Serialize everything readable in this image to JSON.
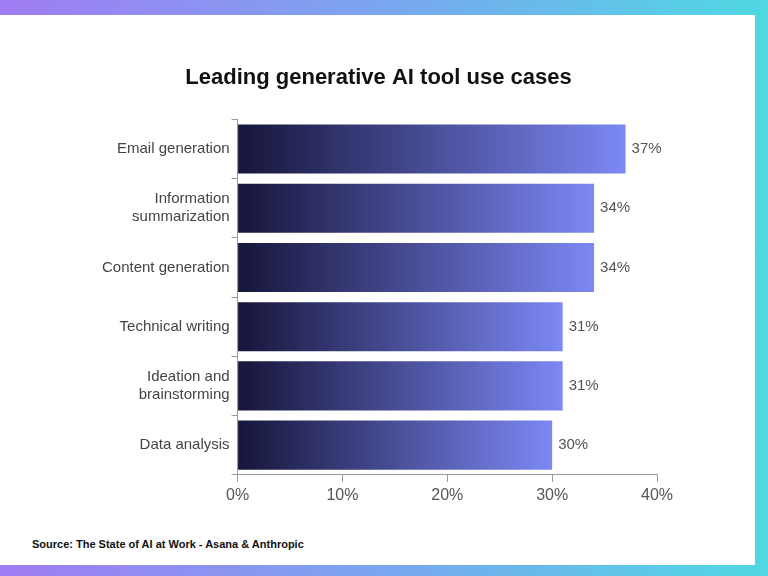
{
  "chart_data": {
    "type": "bar",
    "orientation": "horizontal",
    "title": "Leading generative AI tool use cases",
    "categories": [
      "Email generation",
      "Information summarization",
      "Content generation",
      "Technical writing",
      "Ideation and brainstorming",
      "Data analysis"
    ],
    "values": [
      37,
      34,
      34,
      31,
      31,
      30
    ],
    "value_labels": [
      "37%",
      "34%",
      "34%",
      "31%",
      "31%",
      "30%"
    ],
    "data_labels": true,
    "color": "#7c88f4",
    "xlim": [
      0,
      40
    ],
    "xticks": [
      {
        "value": 0,
        "label": "0%"
      },
      {
        "value": 10,
        "label": "10%"
      },
      {
        "value": 20,
        "label": "20%"
      },
      {
        "value": 30,
        "label": "30%"
      },
      {
        "value": 40,
        "label": "40%"
      }
    ],
    "grid": false,
    "annotations": [
      "Source: The State of AI at Work - Asana & Anthropic"
    ]
  }
}
